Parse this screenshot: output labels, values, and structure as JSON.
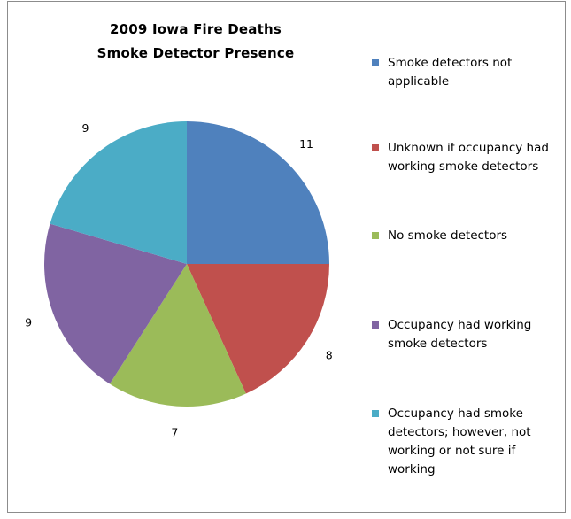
{
  "chart_data": {
    "type": "pie",
    "title": "2009 Iowa Fire Deaths",
    "subtitle": "Smoke Detector Presence",
    "categories": [
      "Smoke detectors not applicable",
      "Unknown if occupancy had working smoke detectors",
      "No smoke detectors",
      "Occupancy had working smoke detectors",
      "Occupancy had smoke detectors; however, not working or not sure if working"
    ],
    "values": [
      11,
      8,
      7,
      9,
      9
    ],
    "data_labels": [
      "11",
      "8",
      "7",
      "9",
      "9"
    ],
    "colors": [
      "#4f81bd",
      "#c0504d",
      "#9bbb59",
      "#8064a2",
      "#4bacc6"
    ],
    "legend_position": "right"
  }
}
